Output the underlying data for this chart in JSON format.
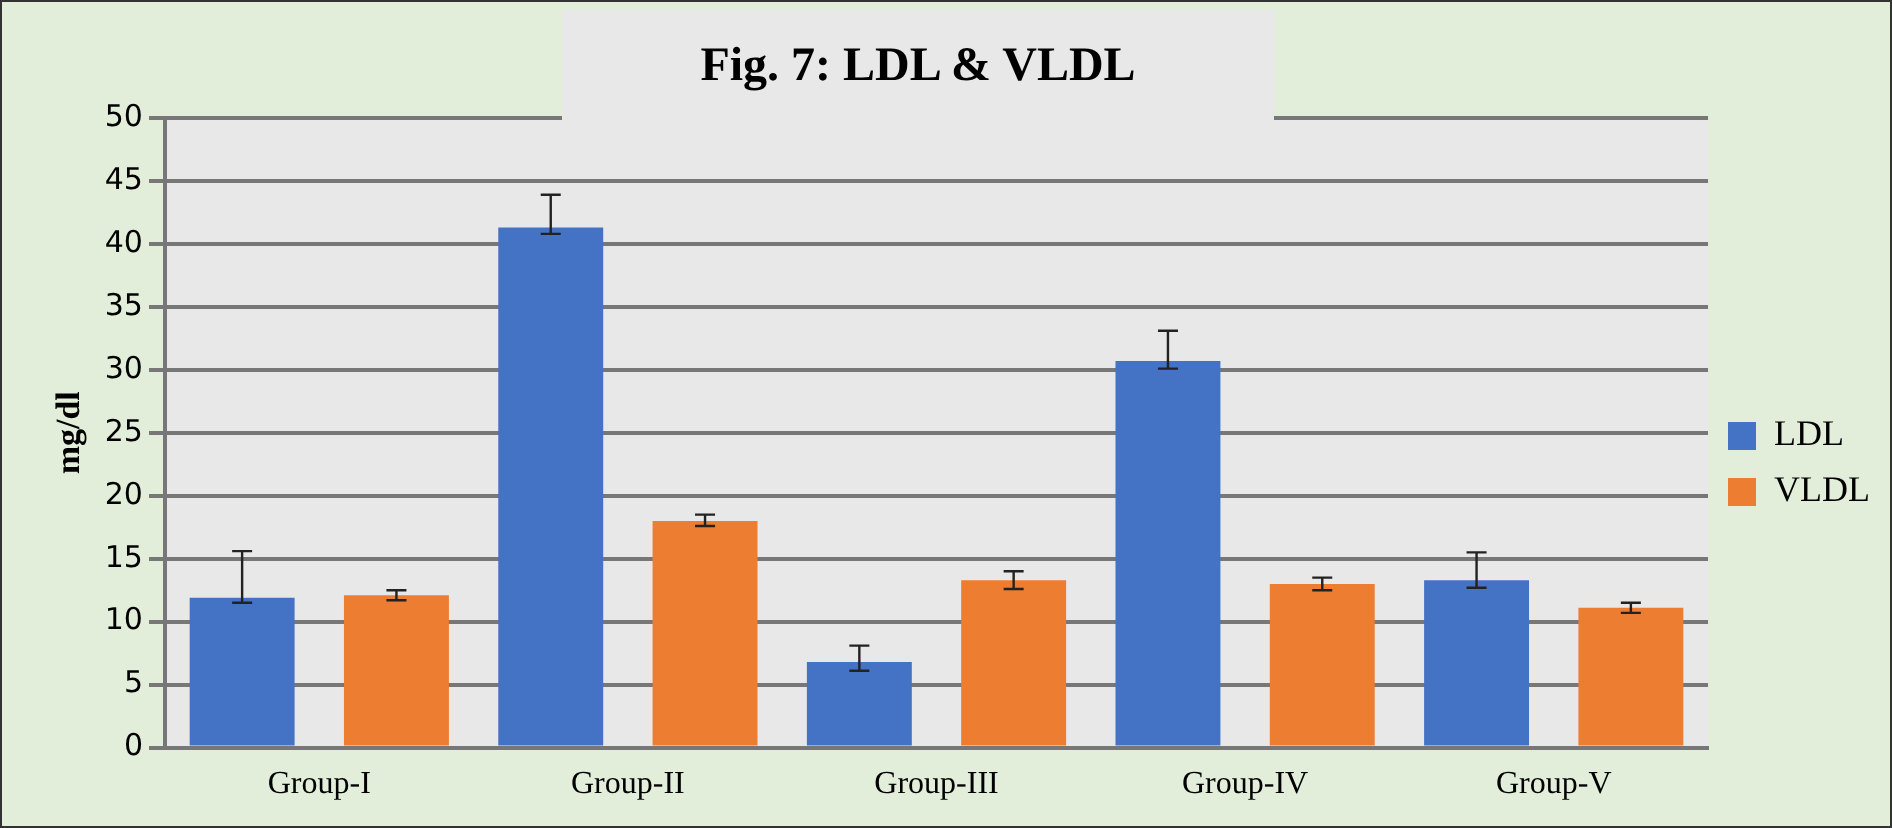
{
  "chart_data": {
    "type": "bar",
    "title": "Fig. 7: LDL & VLDL",
    "ylabel": "mg/dl",
    "categories": [
      "Group-I",
      "Group-II",
      "Group-III",
      "Group-IV",
      "Group-V"
    ],
    "series": [
      {
        "name": "LDL",
        "color": "#4472c4",
        "values": [
          11.9,
          41.3,
          6.8,
          30.7,
          13.3
        ],
        "errors": [
          [
            11.5,
            15.6
          ],
          [
            40.8,
            43.9
          ],
          [
            6.1,
            8.1
          ],
          [
            30.1,
            33.1
          ],
          [
            12.7,
            15.5
          ]
        ]
      },
      {
        "name": "VLDL",
        "color": "#ed7d31",
        "values": [
          12.1,
          18.0,
          13.3,
          13.0,
          11.1
        ],
        "errors": [
          [
            11.7,
            12.5
          ],
          [
            17.6,
            18.5
          ],
          [
            12.6,
            14.0
          ],
          [
            12.5,
            13.5
          ],
          [
            10.7,
            11.5
          ]
        ]
      }
    ],
    "ylim": [
      0,
      50
    ],
    "yticks": [
      0,
      5,
      10,
      15,
      20,
      25,
      30,
      35,
      40,
      45,
      50
    ],
    "grid": "y",
    "legend": "right"
  }
}
